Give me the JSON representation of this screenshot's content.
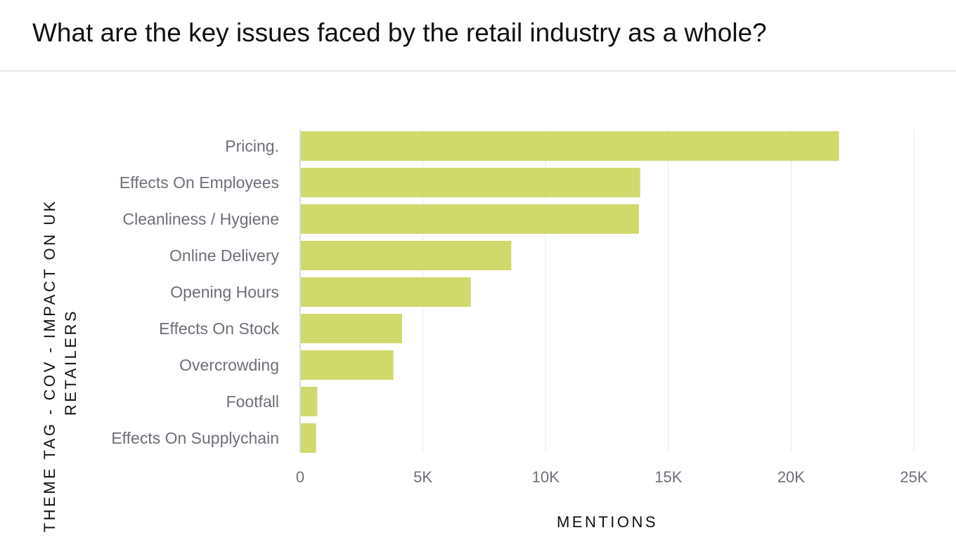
{
  "title": "What are the key issues faced by the retail industry as a whole?",
  "chart_data": {
    "type": "bar",
    "orientation": "horizontal",
    "title": "What are the key issues faced by the retail industry as a whole?",
    "ylabel_lines": [
      "THEME TAG - COV - IMPACT ON UK",
      "RETAILERS"
    ],
    "xlabel": "MENTIONS",
    "xlim": [
      0,
      25000
    ],
    "xticks": [
      0,
      5000,
      10000,
      15000,
      20000,
      25000
    ],
    "xtick_labels": [
      "0",
      "5K",
      "10K",
      "15K",
      "20K",
      "25K"
    ],
    "grid": "vertical",
    "bar_color": "#d0d96b",
    "categories": [
      "Pricing.",
      "Effects On Employees",
      "Cleanliness / Hygiene",
      "Online Delivery",
      "Opening Hours",
      "Effects On Stock",
      "Overcrowding",
      "Footfall",
      "Effects On Supplychain"
    ],
    "values": [
      21950,
      13850,
      13800,
      8600,
      6950,
      4150,
      3800,
      700,
      650
    ]
  }
}
